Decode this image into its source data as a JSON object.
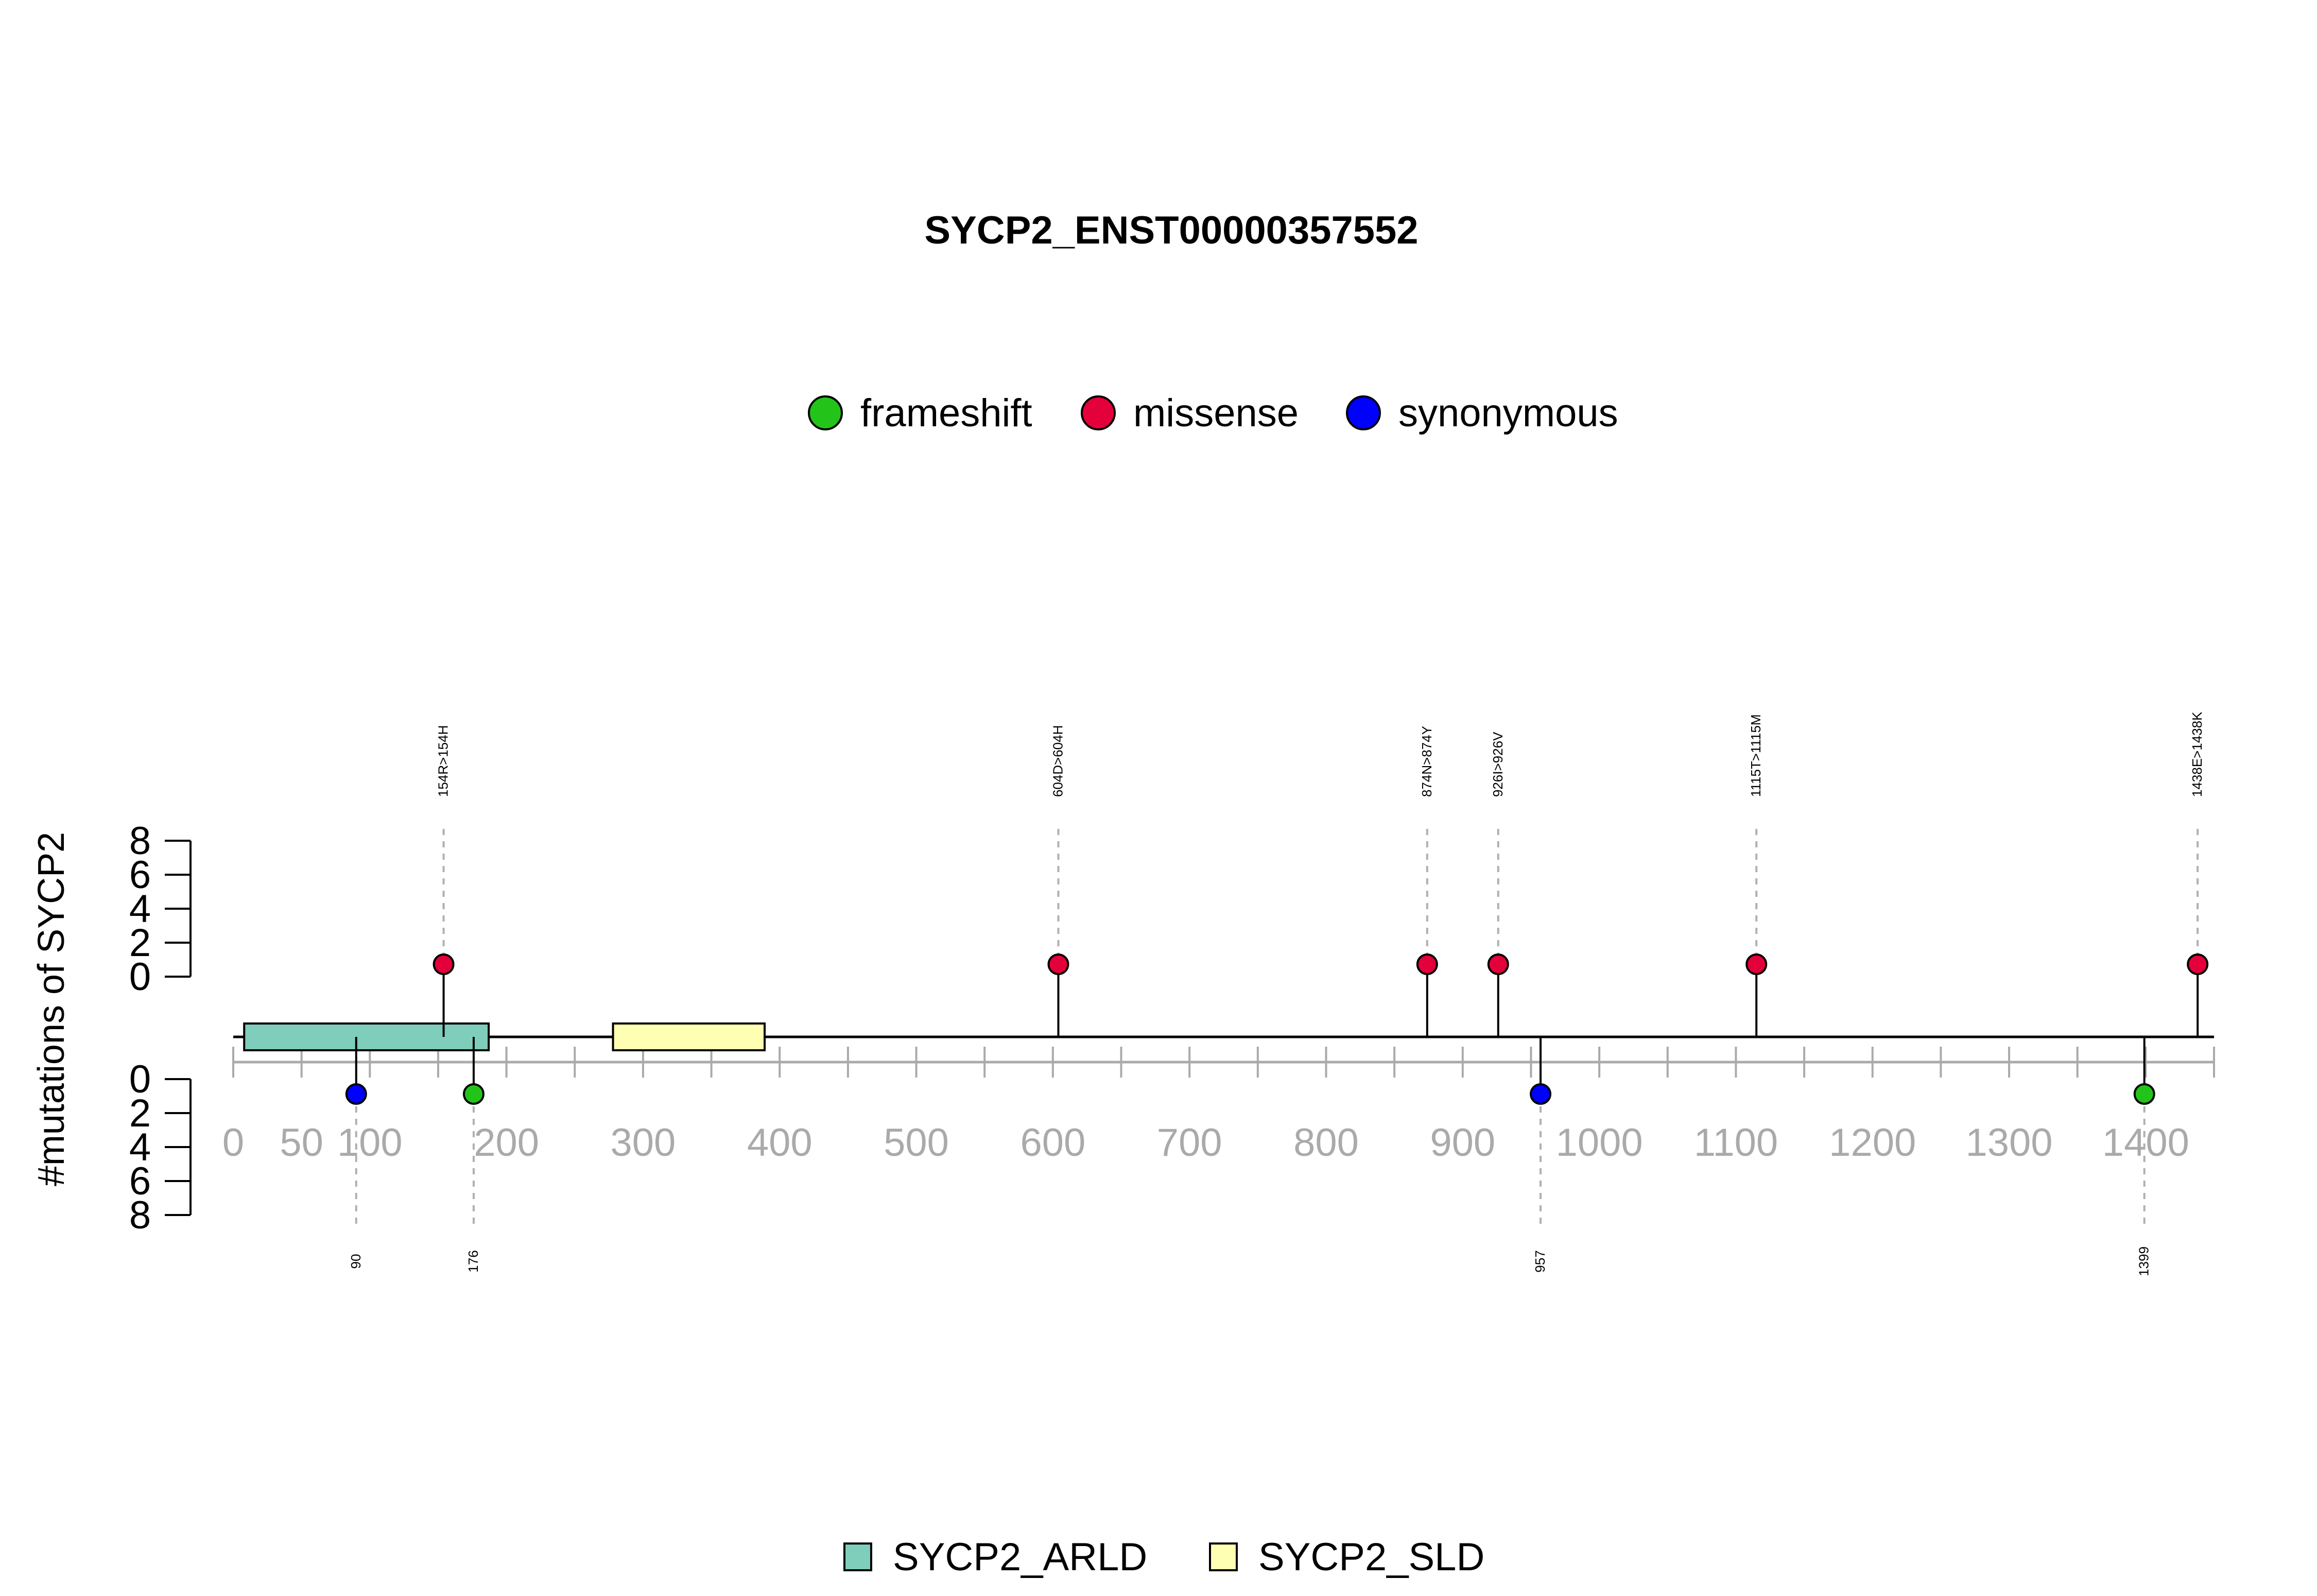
{
  "chart_data": {
    "type": "lollipop",
    "title": "SYCP2_ENST00000357552",
    "ylabel": "#mutations of SYCP2",
    "xlim": [
      0,
      1450
    ],
    "x_ticks": [
      0,
      50,
      100,
      200,
      300,
      400,
      500,
      600,
      700,
      800,
      900,
      1000,
      1100,
      1200,
      1300,
      1400
    ],
    "x_minor_tick_step": 50,
    "y_ticks": [
      0,
      2,
      4,
      6,
      8
    ],
    "ylim": [
      0,
      8
    ],
    "legend_top": [
      {
        "name": "frameshift",
        "color": "#22c41a"
      },
      {
        "name": "missense",
        "color": "#e4003a"
      },
      {
        "name": "synonymous",
        "color": "#0000ff"
      }
    ],
    "domains": [
      {
        "name": "SYCP2_ARLD",
        "start": 8,
        "end": 187,
        "color": "#7fcdbb"
      },
      {
        "name": "SYCP2_SLD",
        "start": 278,
        "end": 389,
        "color": "#ffffb3"
      }
    ],
    "upper_mutations": [
      {
        "pos": 154,
        "count": 1,
        "type": "missense",
        "label": "154R>154H"
      },
      {
        "pos": 604,
        "count": 1,
        "type": "missense",
        "label": "604D>604H"
      },
      {
        "pos": 874,
        "count": 1,
        "type": "missense",
        "label": "874N>874Y"
      },
      {
        "pos": 926,
        "count": 1,
        "type": "missense",
        "label": "926I>926V"
      },
      {
        "pos": 1115,
        "count": 1,
        "type": "missense",
        "label": "1115T>1115M"
      },
      {
        "pos": 1438,
        "count": 1,
        "type": "missense",
        "label": "1438E>1438K"
      }
    ],
    "lower_mutations": [
      {
        "pos": 90,
        "count": 1,
        "type": "synonymous",
        "label": "90"
      },
      {
        "pos": 176,
        "count": 1,
        "type": "frameshift",
        "label": "176"
      },
      {
        "pos": 957,
        "count": 1,
        "type": "synonymous",
        "label": "957"
      },
      {
        "pos": 1399,
        "count": 1,
        "type": "frameshift",
        "label": "1399"
      }
    ]
  }
}
